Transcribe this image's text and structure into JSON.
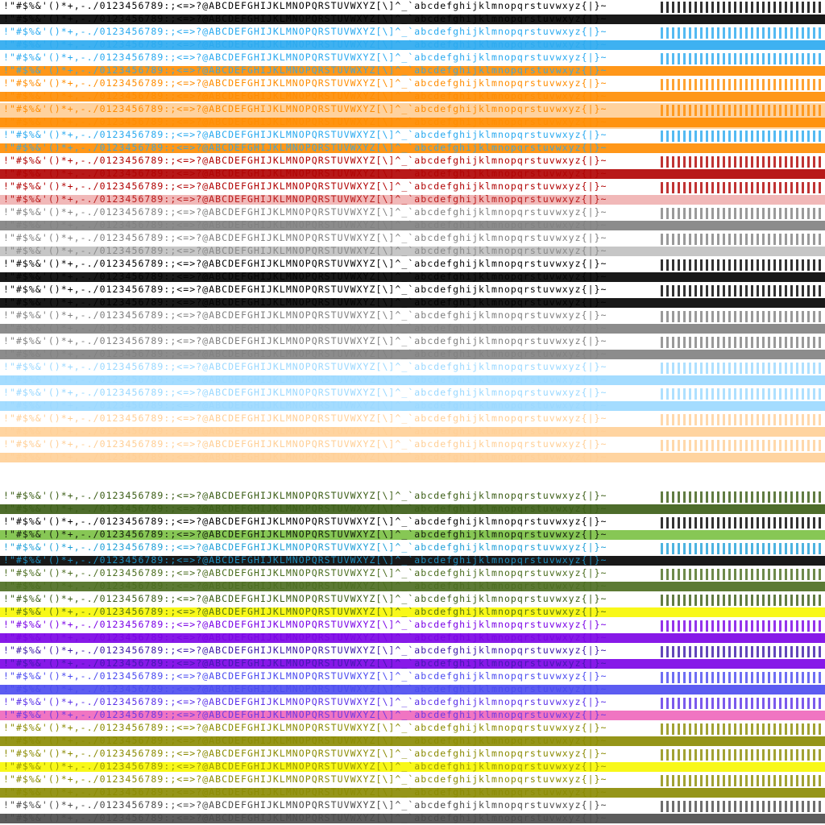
{
  "charset_lines": {
    "primary": "!\"#$%&'()*+,-./0123456789:;<=>?@ABCDEFGHIJKLMNOPQRSTUVWXYZ[\\]^_`abcdefghijklmnopqrstuvwxyz{|}~",
    "secondary": "!\"#$%&'()*+,-./0123456789:;<=>?@ABCDEFGHIJKLMNOPQRSTUVWXYZ[\\]^_`abcdefghijklmnopqrstuvwxyz{|}~"
  },
  "palette_bands": [
    {
      "ink": "#000000",
      "bg": "#ffffff",
      "accent": "#000000"
    },
    {
      "ink": "#29a9ef",
      "bg": "#ffffff",
      "accent": "#29a9ef"
    },
    {
      "ink": "#29a9ef",
      "bg": "#ffffff",
      "accent": "#ff8c00"
    },
    {
      "ink": "#ff8c00",
      "bg": "#ffffff",
      "accent": "#ff8c00"
    },
    {
      "ink": "#ff8c00",
      "bg": "#ffd29e",
      "accent": "#ff8c00"
    },
    {
      "ink": "#29a9ef",
      "bg": "#ffffff",
      "accent": "#ff8c00"
    },
    {
      "ink": "#b00000",
      "bg": "#ffffff",
      "accent": "#b00000"
    },
    {
      "ink": "#b00000",
      "bg": "#ffffff",
      "accent": "#f0b0b0"
    },
    {
      "ink": "#808080",
      "bg": "#ffffff",
      "accent": "#808080"
    },
    {
      "ink": "#808080",
      "bg": "#ffffff",
      "accent": "#c0c0c0"
    },
    {
      "ink": "#000000",
      "bg": "#ffffff",
      "accent": "#000000"
    },
    {
      "ink": "#000000",
      "bg": "#ffffff",
      "accent": "#000000"
    },
    {
      "ink": "#808080",
      "bg": "#ffffff",
      "accent": "#808080"
    },
    {
      "ink": "#808080",
      "bg": "#ffffff",
      "accent": "#808080"
    },
    {
      "ink": "#9ad8ff",
      "bg": "#ffffff",
      "accent": "#9ad8ff"
    },
    {
      "ink": "#9ad8ff",
      "bg": "#ffffff",
      "accent": "#9ad8ff"
    },
    {
      "ink": "#ffcf96",
      "bg": "#ffffff",
      "accent": "#ffcf96"
    },
    {
      "ink": "#ffcf96",
      "bg": "#ffffff",
      "accent": "#ffcf96"
    },
    {
      "ink": "#ffffff",
      "bg": "#ffffff",
      "accent": "#ffffff"
    },
    {
      "ink": "#3a5c14",
      "bg": "#ffffff",
      "accent": "#3a5c14"
    },
    {
      "ink": "#000000",
      "bg": "#ffffff",
      "accent": "#7ac142"
    },
    {
      "ink": "#1fa0d8",
      "bg": "#ffffff",
      "accent": "#000000"
    },
    {
      "ink": "#4a6c1e",
      "bg": "#ffffff",
      "accent": "#4a6c1e"
    },
    {
      "ink": "#3a5c14",
      "bg": "#ffffff",
      "accent": "#f7f700"
    },
    {
      "ink": "#7a00e6",
      "bg": "#ffffff",
      "accent": "#7a00e6"
    },
    {
      "ink": "#3a18a8",
      "bg": "#ffffff",
      "accent": "#7a00e6"
    },
    {
      "ink": "#4a4af0",
      "bg": "#ffffff",
      "accent": "#4a4af0"
    },
    {
      "ink": "#5a30e8",
      "bg": "#ffffff",
      "accent": "#ee66bb"
    },
    {
      "ink": "#8a8a00",
      "bg": "#ffffff",
      "accent": "#8a8a00"
    },
    {
      "ink": "#8a8a00",
      "bg": "#ffffff",
      "accent": "#f7f700"
    },
    {
      "ink": "#8a8a00",
      "bg": "#ffffff",
      "accent": "#8a8a00"
    },
    {
      "ink": "#4a4a4a",
      "bg": "#ffffff",
      "accent": "#4a4a4a"
    }
  ]
}
